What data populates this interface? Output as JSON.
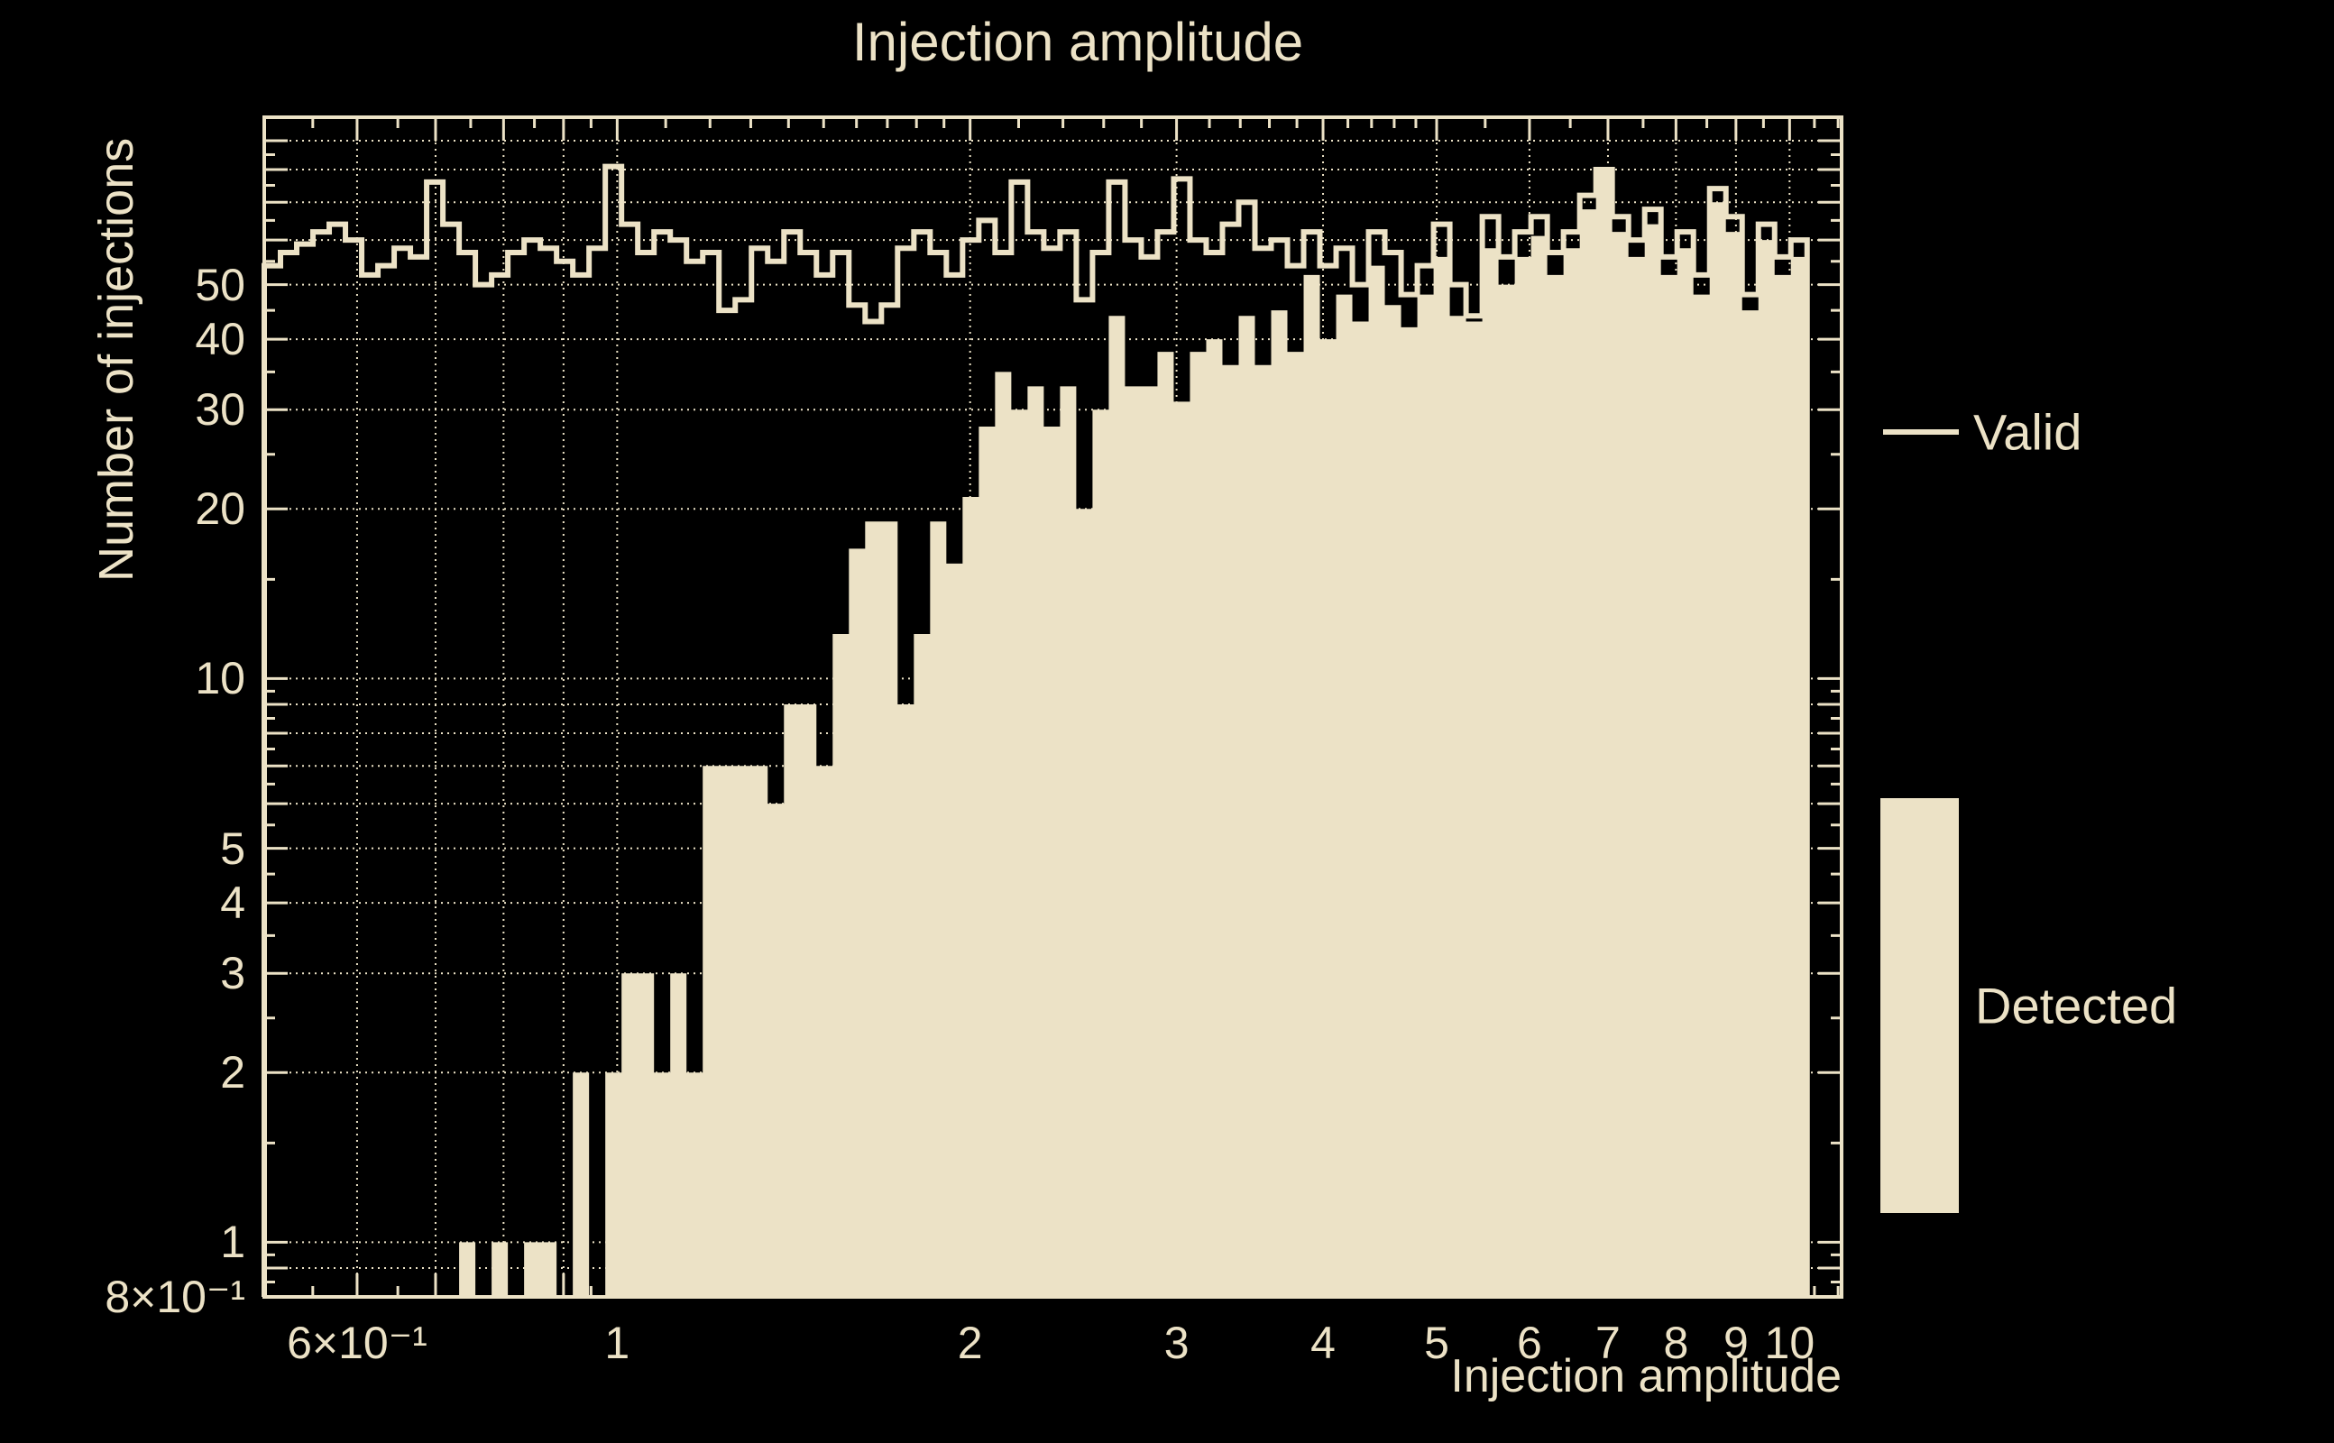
{
  "title": "Injection amplitude",
  "axes": {
    "xlabel": "Injection amplitude",
    "ylabel": "Number of injections"
  },
  "legend": {
    "valid_label": "Valid",
    "detected_label": "Detected"
  },
  "colors": {
    "background": "#000000",
    "foreground": "#ece2c6"
  },
  "chart_data": {
    "type": "bar",
    "subtype": "log-log histogram: step outline (Valid) + filled (Detected)",
    "title": "Injection amplitude",
    "xlabel": "Injection amplitude",
    "ylabel": "Number of injections",
    "xscale": "log",
    "yscale": "log",
    "xlim": [
      0.5,
      11.1
    ],
    "ylim": [
      0.8,
      99
    ],
    "grid": "dotted, at labeled and minor log positions",
    "legend_position": "right, outside plot",
    "bins": {
      "log_spaced": true,
      "min": 0.5,
      "max": 10.35,
      "count": 95
    },
    "x_ticks": [
      [
        0.6,
        "6×10⁻¹"
      ],
      [
        1,
        "1"
      ],
      [
        2,
        "2"
      ],
      [
        3,
        "3"
      ],
      [
        4,
        "4"
      ],
      [
        5,
        "5"
      ],
      [
        6,
        "6"
      ],
      [
        7,
        "7"
      ],
      [
        8,
        "8"
      ],
      [
        9,
        "9"
      ],
      [
        10,
        "10"
      ]
    ],
    "y_ticks": [
      [
        0.8,
        "8×10⁻¹"
      ],
      [
        1,
        "1"
      ],
      [
        2,
        "2"
      ],
      [
        3,
        "3"
      ],
      [
        4,
        "4"
      ],
      [
        5,
        "5"
      ],
      [
        10,
        "10"
      ],
      [
        20,
        "20"
      ],
      [
        30,
        "30"
      ],
      [
        40,
        "40"
      ],
      [
        50,
        "50"
      ]
    ],
    "x_grid": [
      0.6,
      0.7,
      0.8,
      0.9,
      1,
      2,
      3,
      4,
      5,
      6,
      7,
      8,
      9,
      10
    ],
    "y_grid": [
      0.9,
      1,
      2,
      3,
      4,
      5,
      6,
      7,
      8,
      9,
      10,
      20,
      30,
      40,
      50,
      60,
      70,
      80,
      90
    ],
    "series": [
      {
        "name": "Valid",
        "style": "step-outline",
        "values": [
          54,
          57,
          59,
          62,
          64,
          60,
          52,
          54,
          58,
          56,
          76,
          64,
          57,
          50,
          52,
          57,
          60,
          58,
          55,
          52,
          58,
          81,
          64,
          57,
          62,
          60,
          55,
          57,
          45,
          47,
          58,
          55,
          62,
          57,
          52,
          57,
          46,
          43,
          46,
          58,
          62,
          57,
          52,
          60,
          65,
          57,
          76,
          62,
          58,
          62,
          47,
          57,
          76,
          60,
          56,
          62,
          77,
          60,
          57,
          64,
          70,
          58,
          60,
          54,
          62,
          54,
          58,
          50,
          62,
          57,
          48,
          54,
          64,
          50,
          44,
          66,
          56,
          62,
          66,
          57,
          62,
          72,
          80,
          66,
          60,
          68,
          56,
          62,
          52,
          74,
          66,
          48,
          64,
          56,
          60
        ]
      },
      {
        "name": "Detected",
        "style": "filled",
        "values": [
          0,
          0,
          0,
          0,
          0,
          0,
          0,
          0,
          0,
          0,
          0,
          0,
          1,
          0,
          1,
          0,
          1,
          1,
          0,
          2,
          0,
          2,
          3,
          3,
          2,
          3,
          2,
          7,
          7,
          7,
          7,
          6,
          9,
          9,
          7,
          12,
          17,
          19,
          19,
          9,
          12,
          19,
          16,
          21,
          28,
          35,
          30,
          33,
          28,
          33,
          20,
          30,
          44,
          33,
          33,
          38,
          31,
          38,
          40,
          36,
          44,
          36,
          45,
          38,
          52,
          40,
          48,
          43,
          54,
          46,
          42,
          48,
          56,
          44,
          43,
          58,
          50,
          56,
          61,
          52,
          58,
          68,
          80,
          62,
          56,
          64,
          52,
          58,
          48,
          70,
          62,
          45,
          60,
          52,
          56
        ]
      }
    ]
  }
}
